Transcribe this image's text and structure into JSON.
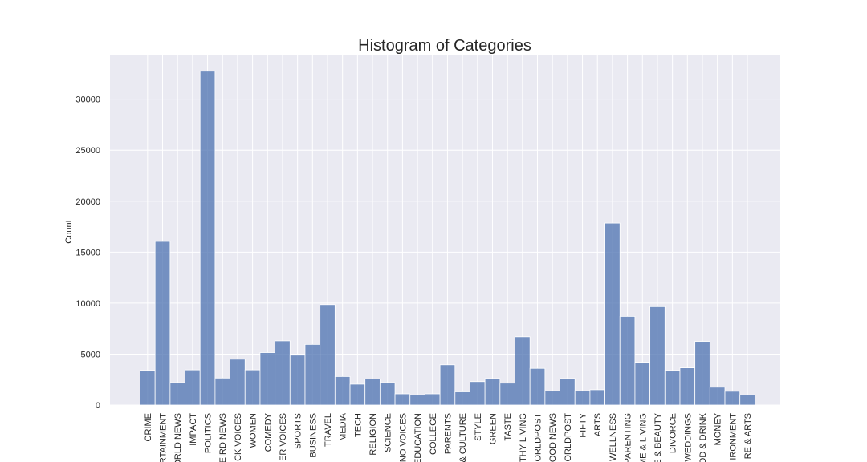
{
  "chart_data": {
    "type": "bar",
    "title": "Histogram of Categories",
    "xlabel": "",
    "ylabel": "Count",
    "ylim": [
      0,
      34300
    ],
    "yticks": [
      0,
      5000,
      10000,
      15000,
      20000,
      25000,
      30000
    ],
    "ytick_labels": [
      "0",
      "5000",
      "10000",
      "15000",
      "20000",
      "25000",
      "30000"
    ],
    "grid": true,
    "legend": "none",
    "bar_color": "#4c72b0",
    "background_color": "#eaeaf2",
    "gridline_color": "#ffffff",
    "categories": [
      "CRIME",
      "RTAINMENT",
      "ORLD NEWS",
      "IMPACT",
      "POLITICS",
      "EIRD NEWS",
      "CK VOICES",
      "WOMEN",
      "COMEDY",
      "ER VOICES",
      "SPORTS",
      "BUSINESS",
      "TRAVEL",
      "MEDIA",
      "TECH",
      "RELIGION",
      "SCIENCE",
      "NO VOICES",
      "EDUCATION",
      "COLLEGE",
      "PARENTS",
      "& CULTURE",
      "STYLE",
      "GREEN",
      "TASTE",
      "THY LIVING",
      "ORLDPOST",
      "OOD NEWS",
      "ORLDPOST",
      "FIFTY",
      "ARTS",
      "WELLNESS",
      "PARENTING",
      "ME & LIVING",
      "E & BEAUTY",
      "DIVORCE",
      "WEDDINGS",
      "OD & DRINK",
      "MONEY",
      "IRONMENT",
      "RE & ARTS"
    ],
    "values": [
      3400,
      16050,
      2200,
      3450,
      32750,
      2650,
      4500,
      3450,
      5150,
      6300,
      4900,
      5950,
      9850,
      2800,
      2050,
      2550,
      2200,
      1100,
      1000,
      1100,
      3950,
      1300,
      2300,
      2600,
      2150,
      6700,
      3600,
      1400,
      2600,
      1400,
      1500,
      17850,
      8700,
      4200,
      9650,
      3400,
      3650,
      6250,
      1750,
      1350,
      1000
    ]
  }
}
